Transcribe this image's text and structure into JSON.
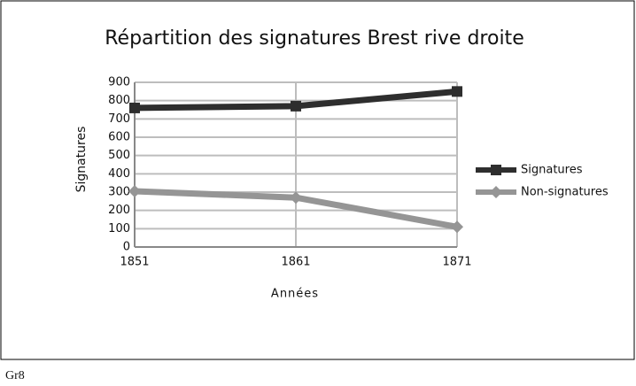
{
  "chart_data": {
    "type": "line",
    "title": "Répartition des signatures Brest rive droite",
    "x_label": "Années",
    "y_label": "Signatures",
    "x": [
      1851,
      1861,
      1871
    ],
    "xlim": [
      1851,
      1871
    ],
    "xticks": [
      1851,
      1861,
      1871
    ],
    "ylim": [
      0,
      900
    ],
    "yticks": [
      0,
      100,
      200,
      300,
      400,
      500,
      600,
      700,
      800,
      900
    ],
    "grid": true,
    "legend": "right",
    "series": [
      {
        "name": "Signatures",
        "color": "#2e2e2e",
        "marker": "square",
        "values": [
          760,
          770,
          850
        ]
      },
      {
        "name": "Non-signatures",
        "color": "#959595",
        "marker": "diamond",
        "values": [
          305,
          270,
          110
        ]
      }
    ]
  },
  "caption": "Gr8"
}
